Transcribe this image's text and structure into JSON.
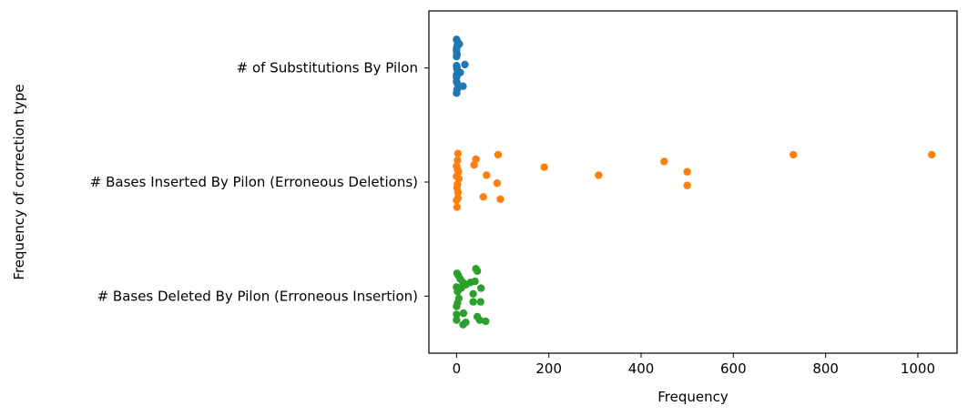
{
  "chart_data": {
    "type": "scatter",
    "subtype": "strip",
    "title": "",
    "xlabel": "Frequency",
    "ylabel": "Frequency of correction type",
    "xlim": [
      -60,
      1085
    ],
    "xticks": [
      0,
      200,
      400,
      600,
      800,
      1000
    ],
    "grid": false,
    "legend": "none",
    "categories": [
      "# of Substitutions By Pilon",
      "# Bases Inserted By Pilon (Erroneous Deletions)",
      "# Bases Deleted By Pilon (Erroneous Insertion)"
    ],
    "series": [
      {
        "category": "# of Substitutions By Pilon",
        "color": "#1f77b4",
        "points": [
          {
            "x": 0,
            "j": -0.25
          },
          {
            "x": 2,
            "j": -0.23
          },
          {
            "x": 6,
            "j": -0.21
          },
          {
            "x": 1,
            "j": -0.19
          },
          {
            "x": 0,
            "j": -0.17
          },
          {
            "x": 0,
            "j": -0.15
          },
          {
            "x": 1,
            "j": -0.12
          },
          {
            "x": 0,
            "j": -0.1
          },
          {
            "x": 18,
            "j": -0.03
          },
          {
            "x": 0,
            "j": -0.02
          },
          {
            "x": 1,
            "j": 0.01
          },
          {
            "x": 8,
            "j": 0.04
          },
          {
            "x": 0,
            "j": 0.06
          },
          {
            "x": 0,
            "j": 0.08
          },
          {
            "x": 0,
            "j": 0.12
          },
          {
            "x": 3,
            "j": 0.15
          },
          {
            "x": 14,
            "j": 0.16
          },
          {
            "x": 1,
            "j": 0.19
          },
          {
            "x": 0,
            "j": 0.22
          },
          {
            "x": 1,
            "j": 0.0
          }
        ]
      },
      {
        "category": "# Bases Inserted By Pilon (Erroneous Deletions)",
        "color": "#ff7f0e",
        "points": [
          {
            "x": 1030,
            "j": -0.24
          },
          {
            "x": 730,
            "j": -0.24
          },
          {
            "x": 90,
            "j": -0.24
          },
          {
            "x": 3,
            "j": -0.25
          },
          {
            "x": 42,
            "j": -0.2
          },
          {
            "x": 2,
            "j": -0.19
          },
          {
            "x": 450,
            "j": -0.18
          },
          {
            "x": 38,
            "j": -0.15
          },
          {
            "x": 0,
            "j": -0.14
          },
          {
            "x": 2,
            "j": -0.11
          },
          {
            "x": 190,
            "j": -0.13
          },
          {
            "x": 4,
            "j": -0.09
          },
          {
            "x": 500,
            "j": -0.09
          },
          {
            "x": 65,
            "j": -0.06
          },
          {
            "x": 308,
            "j": -0.06
          },
          {
            "x": 0,
            "j": -0.05
          },
          {
            "x": 5,
            "j": -0.03
          },
          {
            "x": 88,
            "j": 0.01
          },
          {
            "x": 2,
            "j": 0.02
          },
          {
            "x": 500,
            "j": 0.03
          },
          {
            "x": 1,
            "j": 0.05
          },
          {
            "x": 3,
            "j": 0.09
          },
          {
            "x": 58,
            "j": 0.13
          },
          {
            "x": 3,
            "j": 0.14
          },
          {
            "x": 95,
            "j": 0.15
          },
          {
            "x": 0,
            "j": 0.16
          },
          {
            "x": 1,
            "j": 0.22
          }
        ]
      },
      {
        "category": "# Bases Deleted By Pilon (Erroneous Insertion)",
        "color": "#2ca02c",
        "points": [
          {
            "x": 42,
            "j": -0.24
          },
          {
            "x": 45,
            "j": -0.22
          },
          {
            "x": 1,
            "j": -0.2
          },
          {
            "x": 4,
            "j": -0.18
          },
          {
            "x": 8,
            "j": -0.15
          },
          {
            "x": 14,
            "j": -0.12
          },
          {
            "x": 40,
            "j": -0.13
          },
          {
            "x": 30,
            "j": -0.12
          },
          {
            "x": 20,
            "j": -0.1
          },
          {
            "x": 0,
            "j": -0.08
          },
          {
            "x": 10,
            "j": -0.07
          },
          {
            "x": 53,
            "j": -0.07
          },
          {
            "x": 2,
            "j": -0.04
          },
          {
            "x": 36,
            "j": -0.02
          },
          {
            "x": 5,
            "j": 0.02
          },
          {
            "x": 36,
            "j": 0.05
          },
          {
            "x": 52,
            "j": 0.05
          },
          {
            "x": 2,
            "j": 0.06
          },
          {
            "x": 0,
            "j": 0.09
          },
          {
            "x": 15,
            "j": 0.15
          },
          {
            "x": 0,
            "j": 0.16
          },
          {
            "x": 45,
            "j": 0.18
          },
          {
            "x": 0,
            "j": 0.21
          },
          {
            "x": 50,
            "j": 0.21
          },
          {
            "x": 63,
            "j": 0.22
          },
          {
            "x": 20,
            "j": 0.23
          },
          {
            "x": 14,
            "j": 0.25
          }
        ]
      }
    ]
  }
}
